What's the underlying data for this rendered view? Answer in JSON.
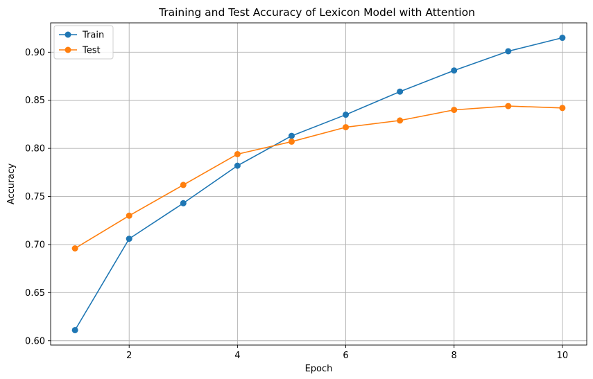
{
  "chart_data": {
    "type": "line",
    "title": "Training and Test Accuracy of Lexicon Model with Attention",
    "xlabel": "Epoch",
    "ylabel": "Accuracy",
    "x": [
      1,
      2,
      3,
      4,
      5,
      6,
      7,
      8,
      9,
      10
    ],
    "xlim": [
      0.55,
      10.45
    ],
    "ylim": [
      0.5955,
      0.9305
    ],
    "xticks": [
      2,
      4,
      6,
      8,
      10
    ],
    "xtick_labels": [
      "2",
      "4",
      "6",
      "8",
      "10"
    ],
    "yticks": [
      0.6,
      0.65,
      0.7,
      0.75,
      0.8,
      0.85,
      0.9
    ],
    "ytick_labels": [
      "0.60",
      "0.65",
      "0.70",
      "0.75",
      "0.80",
      "0.85",
      "0.90"
    ],
    "grid": true,
    "legend_position": "top-left",
    "series": [
      {
        "name": "Train",
        "color": "#1f77b4",
        "marker": "circle",
        "values": [
          0.611,
          0.706,
          0.743,
          0.782,
          0.813,
          0.835,
          0.859,
          0.881,
          0.901,
          0.915
        ]
      },
      {
        "name": "Test",
        "color": "#ff7f0e",
        "marker": "circle",
        "values": [
          0.696,
          0.73,
          0.762,
          0.794,
          0.807,
          0.822,
          0.829,
          0.84,
          0.844,
          0.842
        ]
      }
    ]
  }
}
